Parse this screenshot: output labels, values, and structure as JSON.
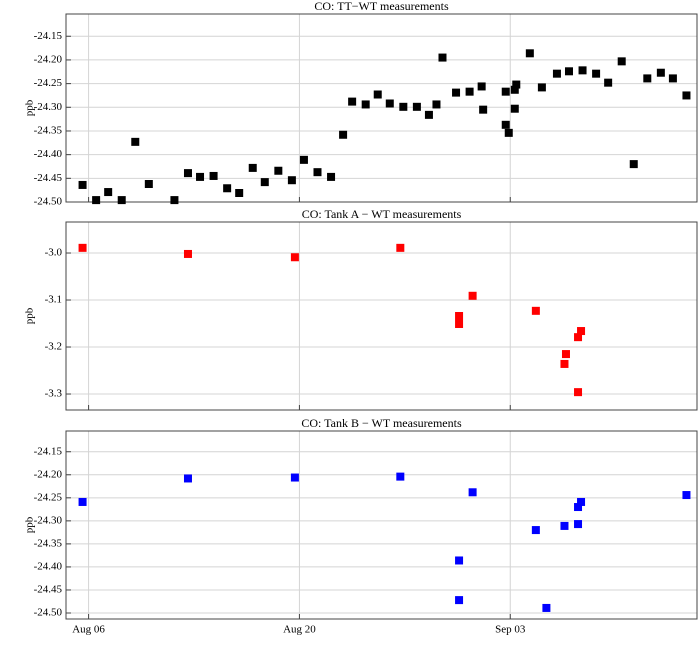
{
  "chart_data": [
    {
      "type": "scatter",
      "title": "CO:  TT−WT measurements",
      "y_label": "ppb",
      "color": "#000000",
      "grid": true,
      "xlim": [
        216.5,
        258.4
      ],
      "xticks": [
        218,
        232,
        246
      ],
      "ylim": [
        -24.5,
        -24.103
      ],
      "yticks": [
        -24.15,
        {
          "value": -24.2,
          "label": "-24.20"
        },
        -24.25,
        {
          "value": -24.3,
          "label": "-24.30"
        },
        -24.35,
        {
          "value": -24.4,
          "label": "-24.40"
        },
        -24.45,
        {
          "value": -24.5,
          "label": "-24.50"
        }
      ],
      "x": [
        217.6,
        218.5,
        219.3,
        220.2,
        221.1,
        222.0,
        223.7,
        224.6,
        225.4,
        226.3,
        227.2,
        228.0,
        228.9,
        229.7,
        230.6,
        231.5,
        232.3,
        233.2,
        234.1,
        234.9,
        235.5,
        236.4,
        237.2,
        238.0,
        238.9,
        239.8,
        240.6,
        241.1,
        241.5,
        242.4,
        243.3,
        244.1,
        244.2,
        245.7,
        245.7,
        245.9,
        246.3,
        246.4,
        246.3,
        247.3,
        248.1,
        249.1,
        249.9,
        250.8,
        251.7,
        252.5,
        253.4,
        254.2,
        255.1,
        256.0,
        256.8,
        257.7
      ],
      "values": [
        -24.464,
        -24.496,
        -24.479,
        -24.496,
        -24.373,
        -24.462,
        -24.496,
        -24.439,
        -24.447,
        -24.445,
        -24.471,
        -24.481,
        -24.428,
        -24.458,
        -24.434,
        -24.454,
        -24.411,
        -24.437,
        -24.447,
        -24.358,
        -24.288,
        -24.294,
        -24.273,
        -24.292,
        -24.299,
        -24.299,
        -24.316,
        -24.294,
        -24.195,
        -24.269,
        -24.267,
        -24.256,
        -24.305,
        -24.267,
        -24.337,
        -24.354,
        -24.263,
        -24.252,
        -24.303,
        -24.186,
        -24.258,
        -24.229,
        -24.224,
        -24.222,
        -24.229,
        -24.248,
        -24.203,
        -24.42,
        -24.239,
        -24.227,
        -24.239,
        -24.275
      ]
    },
    {
      "type": "scatter",
      "title": "CO:  Tank A − WT  measurements",
      "y_label": "ppb",
      "color": "#ff0000",
      "grid": true,
      "xlim": [
        216.5,
        258.4
      ],
      "xticks": [
        218,
        232,
        246
      ],
      "ylim": [
        -3.334,
        -2.934
      ],
      "yticks": [
        {
          "value": -3.0,
          "label": "-3.0"
        },
        -3.1,
        -3.2,
        -3.3
      ],
      "x": [
        217.6,
        224.6,
        231.7,
        238.7,
        242.6,
        242.6,
        243.5,
        247.7,
        249.6,
        249.7,
        250.5,
        250.7,
        250.5
      ],
      "values": [
        -2.989,
        -3.002,
        -3.009,
        -2.989,
        -3.134,
        -3.151,
        -3.091,
        -3.123,
        -3.236,
        -3.215,
        -3.179,
        -3.166,
        -3.296
      ]
    },
    {
      "type": "scatter",
      "title": "CO:  Tank B − WT  measurements",
      "y_label": "ppb",
      "color": "#0000ff",
      "grid": true,
      "xlim": [
        216.5,
        258.4
      ],
      "xticks": [
        {
          "value": 218,
          "label": "Aug 06"
        },
        {
          "value": 232,
          "label": "Aug 20"
        },
        {
          "value": 246,
          "label": "Sep 03"
        }
      ],
      "ylim": [
        -24.513,
        -24.105
      ],
      "yticks": [
        -24.15,
        {
          "value": -24.2,
          "label": "-24.20"
        },
        -24.25,
        {
          "value": -24.3,
          "label": "-24.30"
        },
        -24.35,
        {
          "value": -24.4,
          "label": "-24.40"
        },
        -24.45,
        {
          "value": -24.5,
          "label": "-24.50"
        }
      ],
      "x": [
        217.6,
        224.6,
        231.7,
        238.7,
        242.6,
        242.6,
        243.5,
        247.7,
        248.4,
        249.6,
        250.5,
        250.5,
        250.7,
        257.7
      ],
      "values": [
        -24.259,
        -24.208,
        -24.206,
        -24.204,
        -24.386,
        -24.472,
        -24.238,
        -24.32,
        -24.489,
        -24.311,
        -24.307,
        -24.27,
        -24.259,
        -24.244
      ]
    }
  ]
}
